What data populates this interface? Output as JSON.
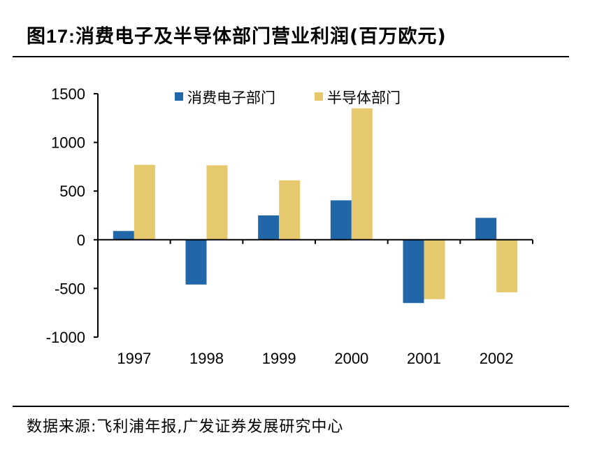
{
  "figure": {
    "label": "图17:",
    "title": "消费电子及半导体部门营业利润(百万欧元)",
    "source": "数据来源:飞利浦年报,广发证券发展研究中心"
  },
  "chart_data": {
    "type": "bar",
    "title": "消费电子及半导体部门营业利润(百万欧元)",
    "categories": [
      "1997",
      "1998",
      "1999",
      "2000",
      "2001",
      "2002"
    ],
    "series": [
      {
        "name": "消费电子部门",
        "color": "#2166a6",
        "values": [
          90,
          -460,
          250,
          405,
          -650,
          225
        ]
      },
      {
        "name": "半导体部门",
        "color": "#e6c86e",
        "values": [
          770,
          765,
          610,
          1350,
          -610,
          -540
        ]
      }
    ],
    "ylim": [
      -1000,
      1500
    ],
    "yticks": [
      1500,
      1000,
      500,
      0,
      -500,
      -1000
    ],
    "xlabel": "",
    "ylabel": "",
    "legend": "top-center"
  }
}
